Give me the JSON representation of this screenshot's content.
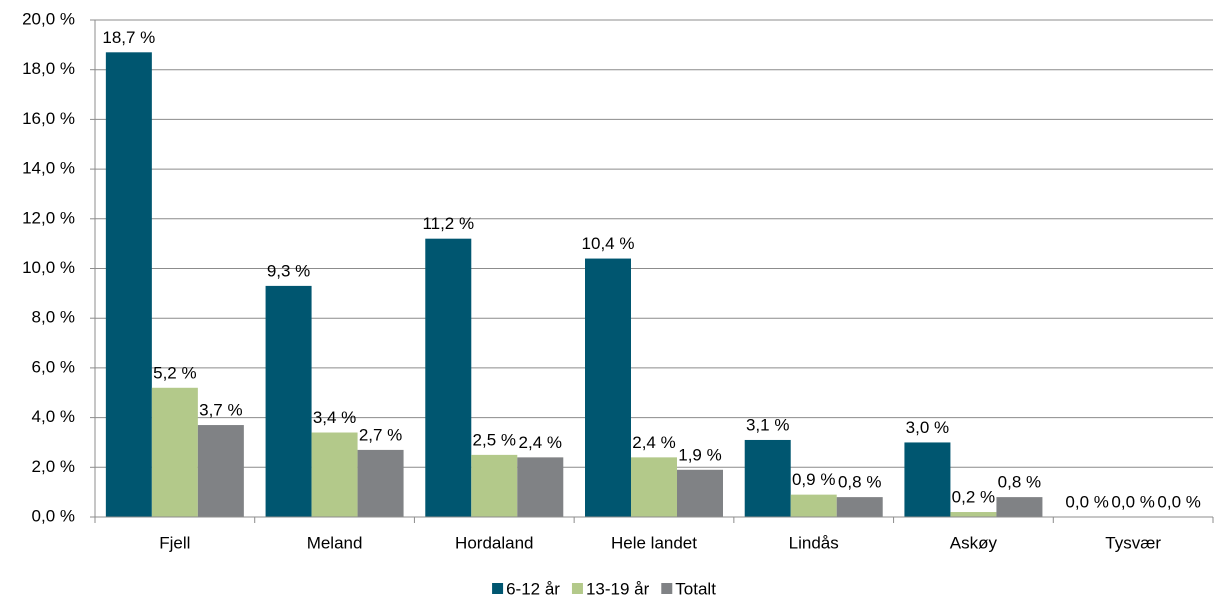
{
  "chart_data": {
    "type": "bar",
    "categories": [
      "Fjell",
      "Meland",
      "Hordaland",
      "Hele landet",
      "Lindås",
      "Askøy",
      "Tysvær"
    ],
    "series": [
      {
        "name": "6-12 år",
        "color": "#005670",
        "values": [
          18.7,
          9.3,
          11.2,
          10.4,
          3.1,
          3.0,
          0.0
        ],
        "value_labels": [
          "18,7 %",
          "9,3 %",
          "11,2 %",
          "10,4 %",
          "3,1 %",
          "3,0 %",
          "0,0 %"
        ]
      },
      {
        "name": "13-19 år",
        "color": "#b3c98a",
        "values": [
          5.2,
          3.4,
          2.5,
          2.4,
          0.9,
          0.2,
          0.0
        ],
        "value_labels": [
          "5,2 %",
          "3,4 %",
          "2,5 %",
          "2,4 %",
          "0,9 %",
          "0,2 %",
          "0,0 %"
        ]
      },
      {
        "name": "Totalt",
        "color": "#808285",
        "values": [
          3.7,
          2.7,
          2.4,
          1.9,
          0.8,
          0.8,
          0.0
        ],
        "value_labels": [
          "3,7 %",
          "2,7 %",
          "2,4 %",
          "1,9 %",
          "0,8 %",
          "0,8 %",
          "0,0 %"
        ]
      }
    ],
    "ylim": [
      0,
      20
    ],
    "yticks": [
      {
        "value": 0,
        "label": "0,0 %"
      },
      {
        "value": 2,
        "label": "2,0 %"
      },
      {
        "value": 4,
        "label": "4,0 %"
      },
      {
        "value": 6,
        "label": "6,0 %"
      },
      {
        "value": 8,
        "label": "8,0 %"
      },
      {
        "value": 10,
        "label": "10,0 %"
      },
      {
        "value": 12,
        "label": "12,0 %"
      },
      {
        "value": 14,
        "label": "14,0 %"
      },
      {
        "value": 16,
        "label": "16,0 %"
      },
      {
        "value": 18,
        "label": "18,0 %"
      },
      {
        "value": 20,
        "label": "20,0 %"
      }
    ],
    "grid": true,
    "legend": "bottom"
  }
}
